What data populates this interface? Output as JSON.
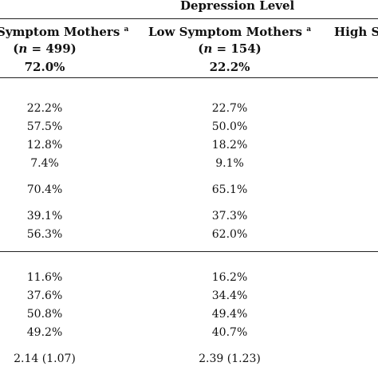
{
  "table": {
    "group_header": "Depression Level",
    "columns": [
      {
        "name": "Symptom Mothers",
        "superscript": "a",
        "n_label": "n",
        "n_value": "= 499)",
        "percent": "72.0%"
      },
      {
        "name": "Low Symptom Mothers",
        "superscript": "a",
        "n_label": "n",
        "n_value": "= 154)",
        "percent": "22.2%"
      },
      {
        "name": "High S"
      }
    ],
    "group1": [
      [
        "22.2%",
        "22.7%"
      ],
      [
        "57.5%",
        "50.0%"
      ],
      [
        "12.8%",
        "18.2%"
      ],
      [
        "7.4%",
        "9.1%"
      ]
    ],
    "group2": [
      [
        "70.4%",
        "65.1%"
      ]
    ],
    "group3": [
      [
        "39.1%",
        "37.3%"
      ],
      [
        "56.3%",
        "62.0%"
      ]
    ],
    "group4": [
      [
        "11.6%",
        "16.2%"
      ],
      [
        "37.6%",
        "34.4%"
      ],
      [
        "50.8%",
        "49.4%"
      ],
      [
        "49.2%",
        "40.7%"
      ]
    ],
    "group5": [
      [
        "2.14 (1.07)",
        "2.39 (1.23)"
      ]
    ]
  }
}
